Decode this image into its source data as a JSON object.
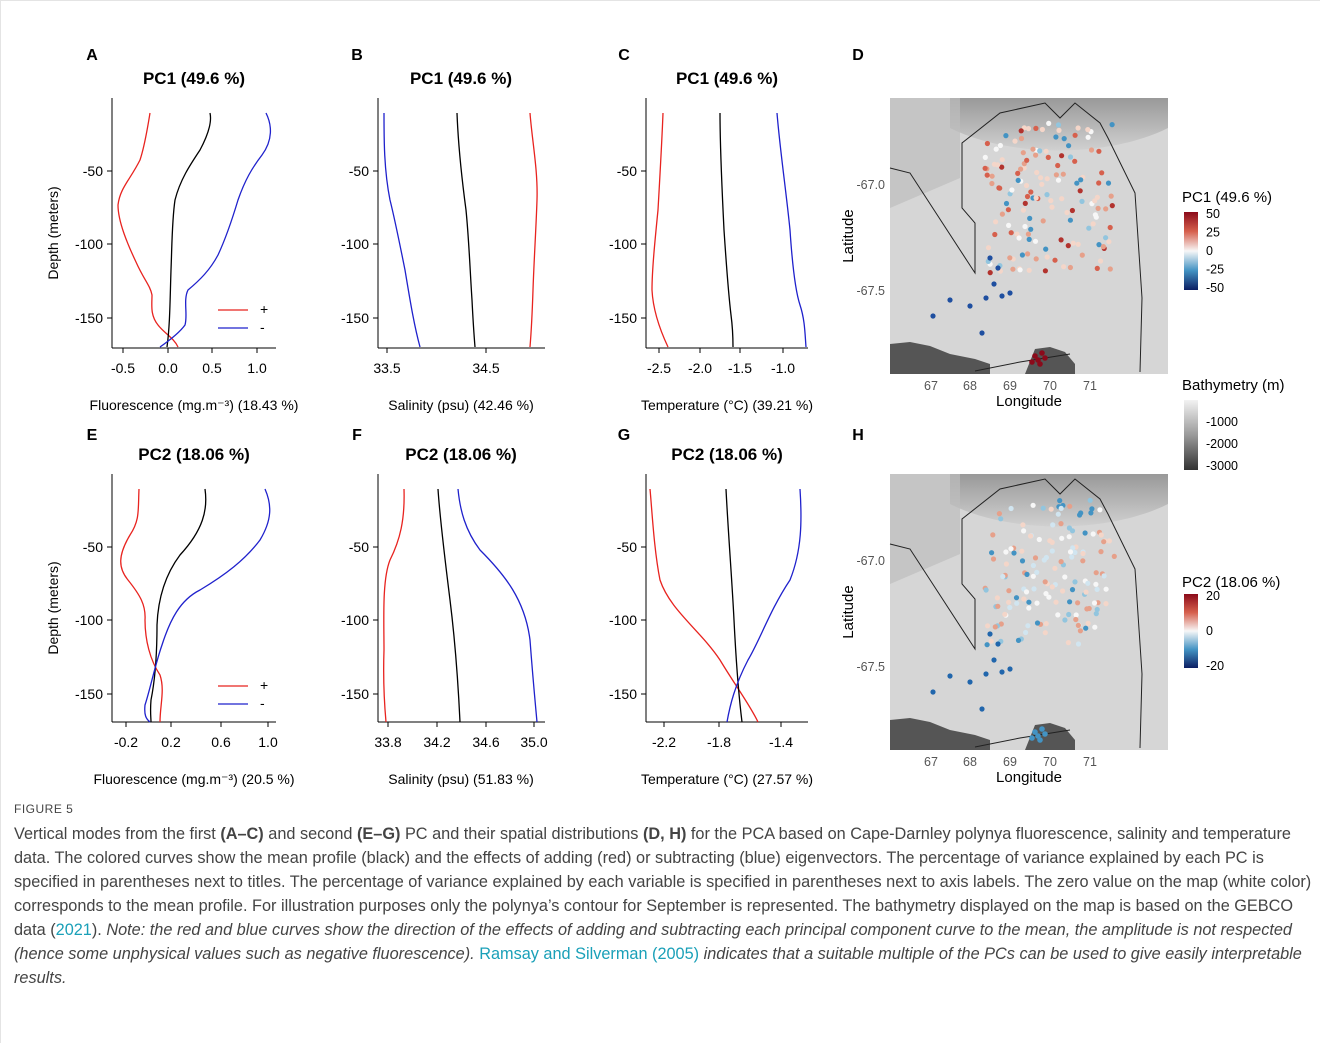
{
  "figure": {
    "panels": [
      {
        "letter": "A",
        "title": "PC1 (49.6 %)",
        "xlabel": "Fluorescence (mg.m⁻³) (18.43 %)",
        "ylabel": "Depth (meters)",
        "xticks": [
          "-0.5",
          "0.0",
          "0.5",
          "1.0"
        ]
      },
      {
        "letter": "B",
        "title": "PC1 (49.6 %)",
        "xlabel": "Salinity (psu) (42.46 %)",
        "ylabel": "",
        "xticks": [
          "33.5",
          "34.5"
        ]
      },
      {
        "letter": "C",
        "title": "PC1 (49.6 %)",
        "xlabel": "Temperature (°C) (39.21 %)",
        "ylabel": "",
        "xticks": [
          "-2.5",
          "-2.0",
          "-1.5",
          "-1.0"
        ]
      },
      {
        "letter": "E",
        "title": "PC2 (18.06 %)",
        "xlabel": "Fluorescence (mg.m⁻³) (20.5 %)",
        "ylabel": "Depth (meters)",
        "xticks": [
          "-0.2",
          "0.2",
          "0.6",
          "1.0"
        ]
      },
      {
        "letter": "F",
        "title": "PC2 (18.06 %)",
        "xlabel": "Salinity (psu) (51.83 %)",
        "ylabel": "",
        "xticks": [
          "33.8",
          "34.2",
          "34.6",
          "35.0"
        ]
      },
      {
        "letter": "G",
        "title": "PC2 (18.06 %)",
        "xlabel": "Temperature (°C) (27.57 %)",
        "ylabel": "",
        "xticks": [
          "-2.2",
          "-1.8",
          "-1.4"
        ]
      }
    ],
    "depth_ticks": [
      "-50",
      "-100",
      "-150"
    ],
    "legend": {
      "plus": "+",
      "minus": "-"
    },
    "maps": [
      {
        "letter": "D",
        "xlabel": "Longitude",
        "ylabel": "Latitude",
        "lat_ticks": [
          "-67.0",
          "-67.5"
        ],
        "lon_ticks": [
          "67",
          "68",
          "69",
          "70",
          "71"
        ],
        "colorbar": {
          "title": "PC1 (49.6 %)",
          "ticks": [
            "50",
            "25",
            "0",
            "-25",
            "-50"
          ]
        }
      },
      {
        "letter": "H",
        "xlabel": "Longitude",
        "ylabel": "Latitude",
        "lat_ticks": [
          "-67.0",
          "-67.5"
        ],
        "lon_ticks": [
          "67",
          "68",
          "69",
          "70",
          "71"
        ],
        "colorbar": {
          "title": "PC2 (18.06 %)",
          "ticks": [
            "20",
            "0",
            "-20"
          ]
        }
      }
    ],
    "bathymetry": {
      "title": "Bathymetry (m)",
      "ticks": [
        "-1000",
        "-2000",
        "-3000"
      ]
    },
    "colors": {
      "plus": "#e8231f",
      "minus": "#1f21cc",
      "mean": "#000000",
      "pos_max": "#8b0a1a",
      "neg_max": "#0b1e63"
    }
  },
  "caption": {
    "label": "FIGURE 5",
    "t1": "Vertical modes from the first ",
    "b1": "(A–C)",
    "t2": " and second ",
    "b2": "(E–G)",
    "t3": " PC and their spatial distributions ",
    "b3": "(D, H)",
    "t4": " for the PCA based on Cape-Darnley polynya fluorescence, salinity and temperature data. The colored curves show the mean profile (black) and the effects of adding (red) or subtracting (blue) eigenvectors. The percentage of variance explained by each PC is specified in parentheses next to titles. The percentage of variance explained by each variable is specified in parentheses next to axis labels. The zero value on the map (white color) corresponds to the mean profile. For illustration purposes only the polynya’s contour for September is represented. The bathymetry displayed on the map is based on the GEBCO data (",
    "ref1": "2021",
    "t5": ").  ",
    "note": "Note: the red and blue curves show the direction of the effects of adding and subtracting each principal component curve to the mean, the amplitude is not respected (hence some unphysical values such as negative fluorescence).",
    "t6": " ",
    "ref2": "Ramsay and Silverman (2005)",
    "note2": " indicates that a suitable multiple of the PCs can be used to give easily interpretable results."
  }
}
